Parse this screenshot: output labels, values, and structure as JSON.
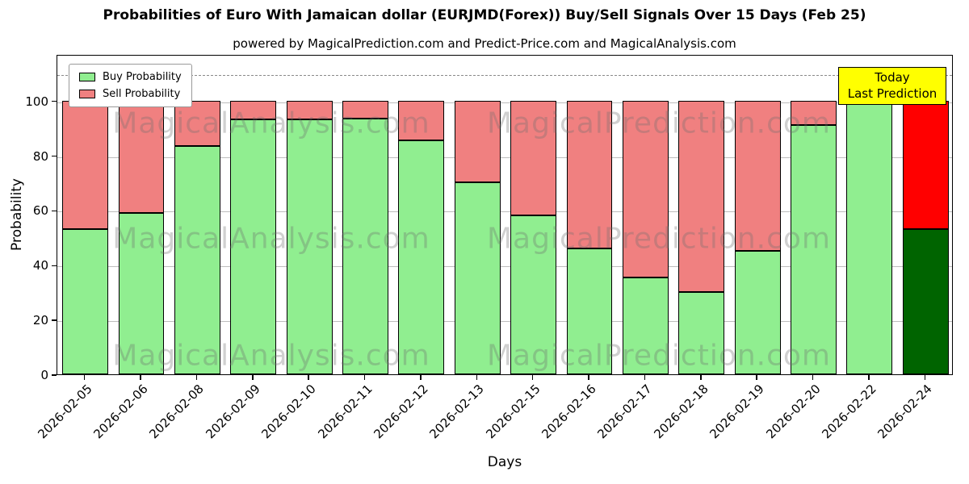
{
  "title": "Probabilities of Euro With Jamaican dollar (EURJMD(Forex)) Buy/Sell Signals Over 15 Days (Feb 25)",
  "subtitle": "powered by MagicalPrediction.com and Predict-Price.com and MagicalAnalysis.com",
  "axes": {
    "xlabel": "Days",
    "ylabel": "Probability"
  },
  "legend": {
    "items": [
      {
        "label": "Buy Probability",
        "color": "#90EE90"
      },
      {
        "label": "Sell Probability",
        "color": "#F08080"
      }
    ]
  },
  "annotation": {
    "line1": "Today",
    "line2": "Last Prediction",
    "bg": "#FFFF00"
  },
  "watermarks": {
    "left": "MagicalAnalysis.com",
    "right": "MagicalPrediction.com"
  },
  "chart_data": {
    "type": "bar",
    "stacked": true,
    "title": "Probabilities of Euro With Jamaican dollar (EURJMD(Forex)) Buy/Sell Signals Over 15 Days (Feb 25)",
    "xlabel": "Days",
    "ylabel": "Probability",
    "categories": [
      "2026-02-05",
      "2026-02-06",
      "2026-02-08",
      "2026-02-09",
      "2026-02-10",
      "2026-02-11",
      "2026-02-12",
      "2026-02-13",
      "2026-02-15",
      "2026-02-16",
      "2026-02-17",
      "2026-02-18",
      "2026-02-19",
      "2026-02-20",
      "2026-02-22",
      "2026-02-24"
    ],
    "series": [
      {
        "name": "Buy Probability",
        "color": "#90EE90",
        "values": [
          53,
          59,
          83.5,
          93,
          93,
          93.5,
          85.5,
          70,
          58,
          46,
          35.5,
          30,
          45,
          91,
          100,
          53
        ]
      },
      {
        "name": "Sell Probability",
        "color": "#F08080",
        "values": [
          47,
          41,
          16.5,
          7,
          7,
          6.5,
          14.5,
          30,
          42,
          54,
          64.5,
          70,
          55,
          9,
          0,
          47
        ]
      }
    ],
    "final_bar_colors": {
      "buy": "#006400",
      "sell": "#FF0000"
    },
    "ylim": [
      0,
      117
    ],
    "yticks": [
      0,
      20,
      40,
      60,
      80,
      100
    ],
    "dashed_line_y": 110,
    "grid": true,
    "legend_position": "upper left"
  }
}
